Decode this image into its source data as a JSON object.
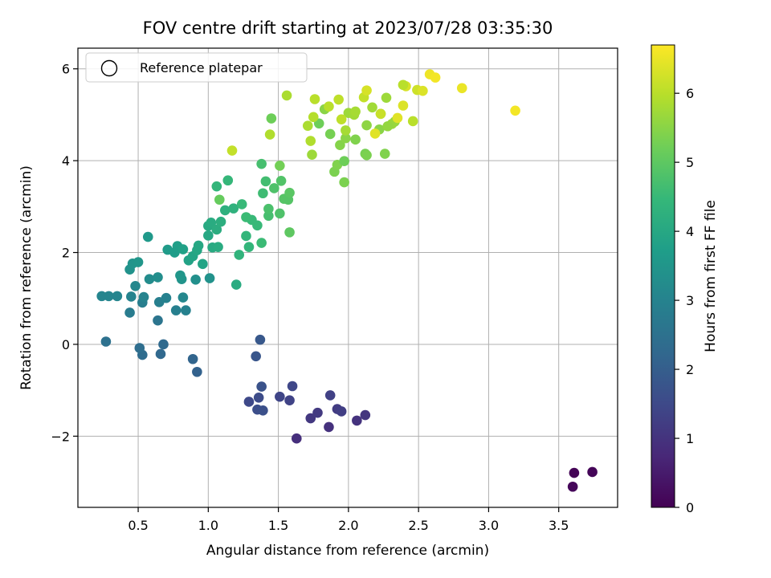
{
  "chart_data": {
    "type": "scatter",
    "title": "FOV centre drift starting at 2023/07/28 03:35:30",
    "xlabel": "Angular distance from reference (arcmin)",
    "ylabel": "Rotation from reference (arcmin)",
    "xlim": [
      0.07,
      3.92
    ],
    "ylim": [
      -3.55,
      6.45
    ],
    "xticks": [
      0.5,
      1.0,
      1.5,
      2.0,
      2.5,
      3.0,
      3.5
    ],
    "xtick_labels": [
      "0.5",
      "1.0",
      "1.5",
      "2.0",
      "2.5",
      "3.0",
      "3.5"
    ],
    "yticks": [
      -2,
      0,
      2,
      4,
      6
    ],
    "ytick_labels": [
      "−2",
      "0",
      "2",
      "4",
      "6"
    ],
    "grid": true,
    "legend": {
      "placement": "top-left",
      "entries": [
        "Reference platepar"
      ]
    },
    "colorbar": {
      "label": "Hours from first FF file",
      "colormap": "viridis",
      "range": [
        0,
        6.7
      ],
      "ticks": [
        0,
        1,
        2,
        3,
        4,
        5,
        6
      ],
      "tick_labels": [
        "0",
        "1",
        "2",
        "3",
        "4",
        "5",
        "6"
      ]
    },
    "points": [
      {
        "x": 3.61,
        "y": -2.8,
        "c": 0.05
      },
      {
        "x": 3.74,
        "y": -2.78,
        "c": 0.08
      },
      {
        "x": 3.6,
        "y": -3.1,
        "c": 0.12
      },
      {
        "x": 1.63,
        "y": -2.05,
        "c": 0.9
      },
      {
        "x": 1.86,
        "y": -1.8,
        "c": 0.95
      },
      {
        "x": 2.06,
        "y": -1.66,
        "c": 1.0
      },
      {
        "x": 2.12,
        "y": -1.54,
        "c": 1.05
      },
      {
        "x": 1.73,
        "y": -1.61,
        "c": 1.1
      },
      {
        "x": 1.78,
        "y": -1.49,
        "c": 1.15
      },
      {
        "x": 1.92,
        "y": -1.41,
        "c": 1.2
      },
      {
        "x": 1.95,
        "y": -1.46,
        "c": 1.25
      },
      {
        "x": 1.87,
        "y": -1.11,
        "c": 1.3
      },
      {
        "x": 1.58,
        "y": -1.22,
        "c": 1.35
      },
      {
        "x": 1.51,
        "y": -1.14,
        "c": 1.4
      },
      {
        "x": 1.6,
        "y": -0.91,
        "c": 1.45
      },
      {
        "x": 1.29,
        "y": -1.25,
        "c": 1.5
      },
      {
        "x": 1.36,
        "y": -1.16,
        "c": 1.55
      },
      {
        "x": 1.35,
        "y": -1.42,
        "c": 1.6
      },
      {
        "x": 1.39,
        "y": -1.44,
        "c": 1.65
      },
      {
        "x": 1.38,
        "y": -0.92,
        "c": 1.7
      },
      {
        "x": 1.34,
        "y": -0.26,
        "c": 1.8
      },
      {
        "x": 1.37,
        "y": 0.1,
        "c": 1.85
      },
      {
        "x": 0.92,
        "y": -0.6,
        "c": 2.1
      },
      {
        "x": 0.89,
        "y": -0.32,
        "c": 2.15
      },
      {
        "x": 0.66,
        "y": -0.21,
        "c": 2.25
      },
      {
        "x": 0.68,
        "y": 0.0,
        "c": 2.3
      },
      {
        "x": 0.53,
        "y": -0.23,
        "c": 2.35
      },
      {
        "x": 0.51,
        "y": -0.08,
        "c": 2.4
      },
      {
        "x": 0.27,
        "y": 0.06,
        "c": 2.5
      },
      {
        "x": 0.64,
        "y": 0.52,
        "c": 2.6
      },
      {
        "x": 0.44,
        "y": 0.69,
        "c": 2.8
      },
      {
        "x": 0.53,
        "y": 0.91,
        "c": 2.85
      },
      {
        "x": 0.65,
        "y": 0.92,
        "c": 2.9
      },
      {
        "x": 0.7,
        "y": 1.01,
        "c": 2.95
      },
      {
        "x": 0.54,
        "y": 1.03,
        "c": 3.0
      },
      {
        "x": 0.45,
        "y": 1.04,
        "c": 3.0
      },
      {
        "x": 0.77,
        "y": 0.74,
        "c": 2.9
      },
      {
        "x": 0.84,
        "y": 0.74,
        "c": 2.95
      },
      {
        "x": 0.29,
        "y": 1.05,
        "c": 3.05
      },
      {
        "x": 0.24,
        "y": 1.05,
        "c": 3.05
      },
      {
        "x": 0.35,
        "y": 1.05,
        "c": 3.05
      },
      {
        "x": 0.48,
        "y": 1.27,
        "c": 3.1
      },
      {
        "x": 0.82,
        "y": 1.02,
        "c": 3.1
      },
      {
        "x": 0.58,
        "y": 1.42,
        "c": 3.25
      },
      {
        "x": 0.64,
        "y": 1.46,
        "c": 3.3
      },
      {
        "x": 0.91,
        "y": 1.41,
        "c": 3.35
      },
      {
        "x": 1.01,
        "y": 1.44,
        "c": 3.4
      },
      {
        "x": 0.44,
        "y": 1.63,
        "c": 3.4
      },
      {
        "x": 0.46,
        "y": 1.76,
        "c": 3.45
      },
      {
        "x": 0.5,
        "y": 1.79,
        "c": 3.5
      },
      {
        "x": 0.81,
        "y": 1.42,
        "c": 3.45
      },
      {
        "x": 0.8,
        "y": 1.5,
        "c": 3.5
      },
      {
        "x": 0.57,
        "y": 2.34,
        "c": 3.6
      },
      {
        "x": 0.71,
        "y": 2.06,
        "c": 3.65
      },
      {
        "x": 0.76,
        "y": 2.0,
        "c": 3.7
      },
      {
        "x": 0.78,
        "y": 2.14,
        "c": 3.75
      },
      {
        "x": 0.82,
        "y": 2.07,
        "c": 3.8
      },
      {
        "x": 0.86,
        "y": 1.83,
        "c": 3.85
      },
      {
        "x": 0.89,
        "y": 1.92,
        "c": 3.9
      },
      {
        "x": 0.92,
        "y": 2.05,
        "c": 3.95
      },
      {
        "x": 0.93,
        "y": 2.15,
        "c": 4.0
      },
      {
        "x": 0.96,
        "y": 1.75,
        "c": 3.9
      },
      {
        "x": 1.0,
        "y": 2.37,
        "c": 4.0
      },
      {
        "x": 1.0,
        "y": 2.58,
        "c": 4.05
      },
      {
        "x": 1.02,
        "y": 2.65,
        "c": 4.1
      },
      {
        "x": 1.03,
        "y": 2.11,
        "c": 4.05
      },
      {
        "x": 1.07,
        "y": 2.12,
        "c": 4.1
      },
      {
        "x": 1.06,
        "y": 2.5,
        "c": 4.15
      },
      {
        "x": 1.09,
        "y": 2.67,
        "c": 4.2
      },
      {
        "x": 1.12,
        "y": 2.92,
        "c": 4.25
      },
      {
        "x": 1.2,
        "y": 1.3,
        "c": 4.1
      },
      {
        "x": 1.18,
        "y": 2.96,
        "c": 4.3
      },
      {
        "x": 1.22,
        "y": 1.95,
        "c": 4.35
      },
      {
        "x": 1.27,
        "y": 2.36,
        "c": 4.4
      },
      {
        "x": 1.29,
        "y": 2.12,
        "c": 4.4
      },
      {
        "x": 1.31,
        "y": 2.71,
        "c": 4.5
      },
      {
        "x": 1.35,
        "y": 2.59,
        "c": 4.5
      },
      {
        "x": 1.38,
        "y": 2.21,
        "c": 4.55
      },
      {
        "x": 1.39,
        "y": 3.29,
        "c": 4.6
      },
      {
        "x": 1.41,
        "y": 3.55,
        "c": 4.65
      },
      {
        "x": 1.43,
        "y": 2.8,
        "c": 4.7
      },
      {
        "x": 1.43,
        "y": 2.95,
        "c": 4.75
      },
      {
        "x": 1.38,
        "y": 3.93,
        "c": 4.7
      },
      {
        "x": 1.47,
        "y": 3.4,
        "c": 4.8
      },
      {
        "x": 1.51,
        "y": 2.85,
        "c": 4.8
      },
      {
        "x": 1.52,
        "y": 3.56,
        "c": 4.85
      },
      {
        "x": 1.54,
        "y": 3.17,
        "c": 4.9
      },
      {
        "x": 1.57,
        "y": 3.15,
        "c": 4.9
      },
      {
        "x": 1.58,
        "y": 3.3,
        "c": 4.95
      },
      {
        "x": 1.58,
        "y": 2.44,
        "c": 5.0
      },
      {
        "x": 1.06,
        "y": 3.44,
        "c": 4.4
      },
      {
        "x": 1.14,
        "y": 3.57,
        "c": 4.45
      },
      {
        "x": 1.24,
        "y": 3.05,
        "c": 4.5
      },
      {
        "x": 1.27,
        "y": 2.77,
        "c": 4.55
      },
      {
        "x": 1.08,
        "y": 3.15,
        "c": 5.1
      },
      {
        "x": 1.45,
        "y": 4.92,
        "c": 5.2
      },
      {
        "x": 1.51,
        "y": 3.89,
        "c": 5.25
      },
      {
        "x": 1.79,
        "y": 4.81,
        "c": 5.2
      },
      {
        "x": 1.83,
        "y": 5.12,
        "c": 5.5
      },
      {
        "x": 1.87,
        "y": 4.58,
        "c": 5.3
      },
      {
        "x": 1.9,
        "y": 3.76,
        "c": 5.35
      },
      {
        "x": 1.92,
        "y": 3.91,
        "c": 5.4
      },
      {
        "x": 1.94,
        "y": 4.34,
        "c": 5.45
      },
      {
        "x": 1.97,
        "y": 3.99,
        "c": 5.2
      },
      {
        "x": 1.97,
        "y": 3.53,
        "c": 5.35
      },
      {
        "x": 1.98,
        "y": 4.49,
        "c": 5.5
      },
      {
        "x": 2.05,
        "y": 4.46,
        "c": 5.4
      },
      {
        "x": 2.12,
        "y": 4.15,
        "c": 5.3
      },
      {
        "x": 2.13,
        "y": 4.12,
        "c": 5.35
      },
      {
        "x": 2.26,
        "y": 4.15,
        "c": 5.4
      },
      {
        "x": 2.22,
        "y": 4.68,
        "c": 5.5
      },
      {
        "x": 2.23,
        "y": 5.02,
        "c": 5.6
      },
      {
        "x": 2.33,
        "y": 4.85,
        "c": 5.6
      },
      {
        "x": 2.31,
        "y": 4.8,
        "c": 5.65
      },
      {
        "x": 2.27,
        "y": 5.37,
        "c": 5.7
      },
      {
        "x": 2.17,
        "y": 5.16,
        "c": 5.75
      },
      {
        "x": 2.13,
        "y": 4.77,
        "c": 5.55
      },
      {
        "x": 2.28,
        "y": 4.75,
        "c": 5.6
      },
      {
        "x": 2.0,
        "y": 5.04,
        "c": 5.7
      },
      {
        "x": 2.04,
        "y": 5.0,
        "c": 5.75
      },
      {
        "x": 2.05,
        "y": 5.07,
        "c": 5.8
      },
      {
        "x": 1.98,
        "y": 4.66,
        "c": 5.8
      },
      {
        "x": 1.71,
        "y": 4.76,
        "c": 5.85
      },
      {
        "x": 1.73,
        "y": 4.43,
        "c": 5.9
      },
      {
        "x": 1.74,
        "y": 4.13,
        "c": 5.7
      },
      {
        "x": 1.75,
        "y": 4.95,
        "c": 5.95
      },
      {
        "x": 1.76,
        "y": 5.34,
        "c": 6.0
      },
      {
        "x": 1.86,
        "y": 5.18,
        "c": 6.0
      },
      {
        "x": 1.95,
        "y": 4.9,
        "c": 6.05
      },
      {
        "x": 1.93,
        "y": 5.33,
        "c": 6.05
      },
      {
        "x": 1.56,
        "y": 5.42,
        "c": 5.85
      },
      {
        "x": 1.44,
        "y": 4.57,
        "c": 5.9
      },
      {
        "x": 1.17,
        "y": 4.22,
        "c": 6.1
      },
      {
        "x": 2.11,
        "y": 5.38,
        "c": 6.1
      },
      {
        "x": 2.13,
        "y": 5.53,
        "c": 6.3
      },
      {
        "x": 2.23,
        "y": 5.02,
        "c": 6.15
      },
      {
        "x": 2.39,
        "y": 5.2,
        "c": 6.35
      },
      {
        "x": 2.41,
        "y": 5.62,
        "c": 6.3
      },
      {
        "x": 2.46,
        "y": 4.86,
        "c": 6.0
      },
      {
        "x": 2.49,
        "y": 5.54,
        "c": 6.2
      },
      {
        "x": 2.53,
        "y": 5.52,
        "c": 6.35
      },
      {
        "x": 2.58,
        "y": 5.88,
        "c": 6.55
      },
      {
        "x": 2.62,
        "y": 5.81,
        "c": 6.6
      },
      {
        "x": 2.81,
        "y": 5.58,
        "c": 6.5
      },
      {
        "x": 3.19,
        "y": 5.09,
        "c": 6.6
      },
      {
        "x": 2.19,
        "y": 4.59,
        "c": 6.4
      },
      {
        "x": 2.35,
        "y": 4.93,
        "c": 6.4
      },
      {
        "x": 2.39,
        "y": 5.65,
        "c": 6.0
      }
    ]
  },
  "colors": {
    "viridis": [
      "#440154",
      "#482878",
      "#3e4989",
      "#31688e",
      "#26828e",
      "#1f9e89",
      "#35b779",
      "#6ece58",
      "#b5de2b",
      "#fde725"
    ],
    "grid": "#b0b0b0",
    "axes": "#000000"
  }
}
